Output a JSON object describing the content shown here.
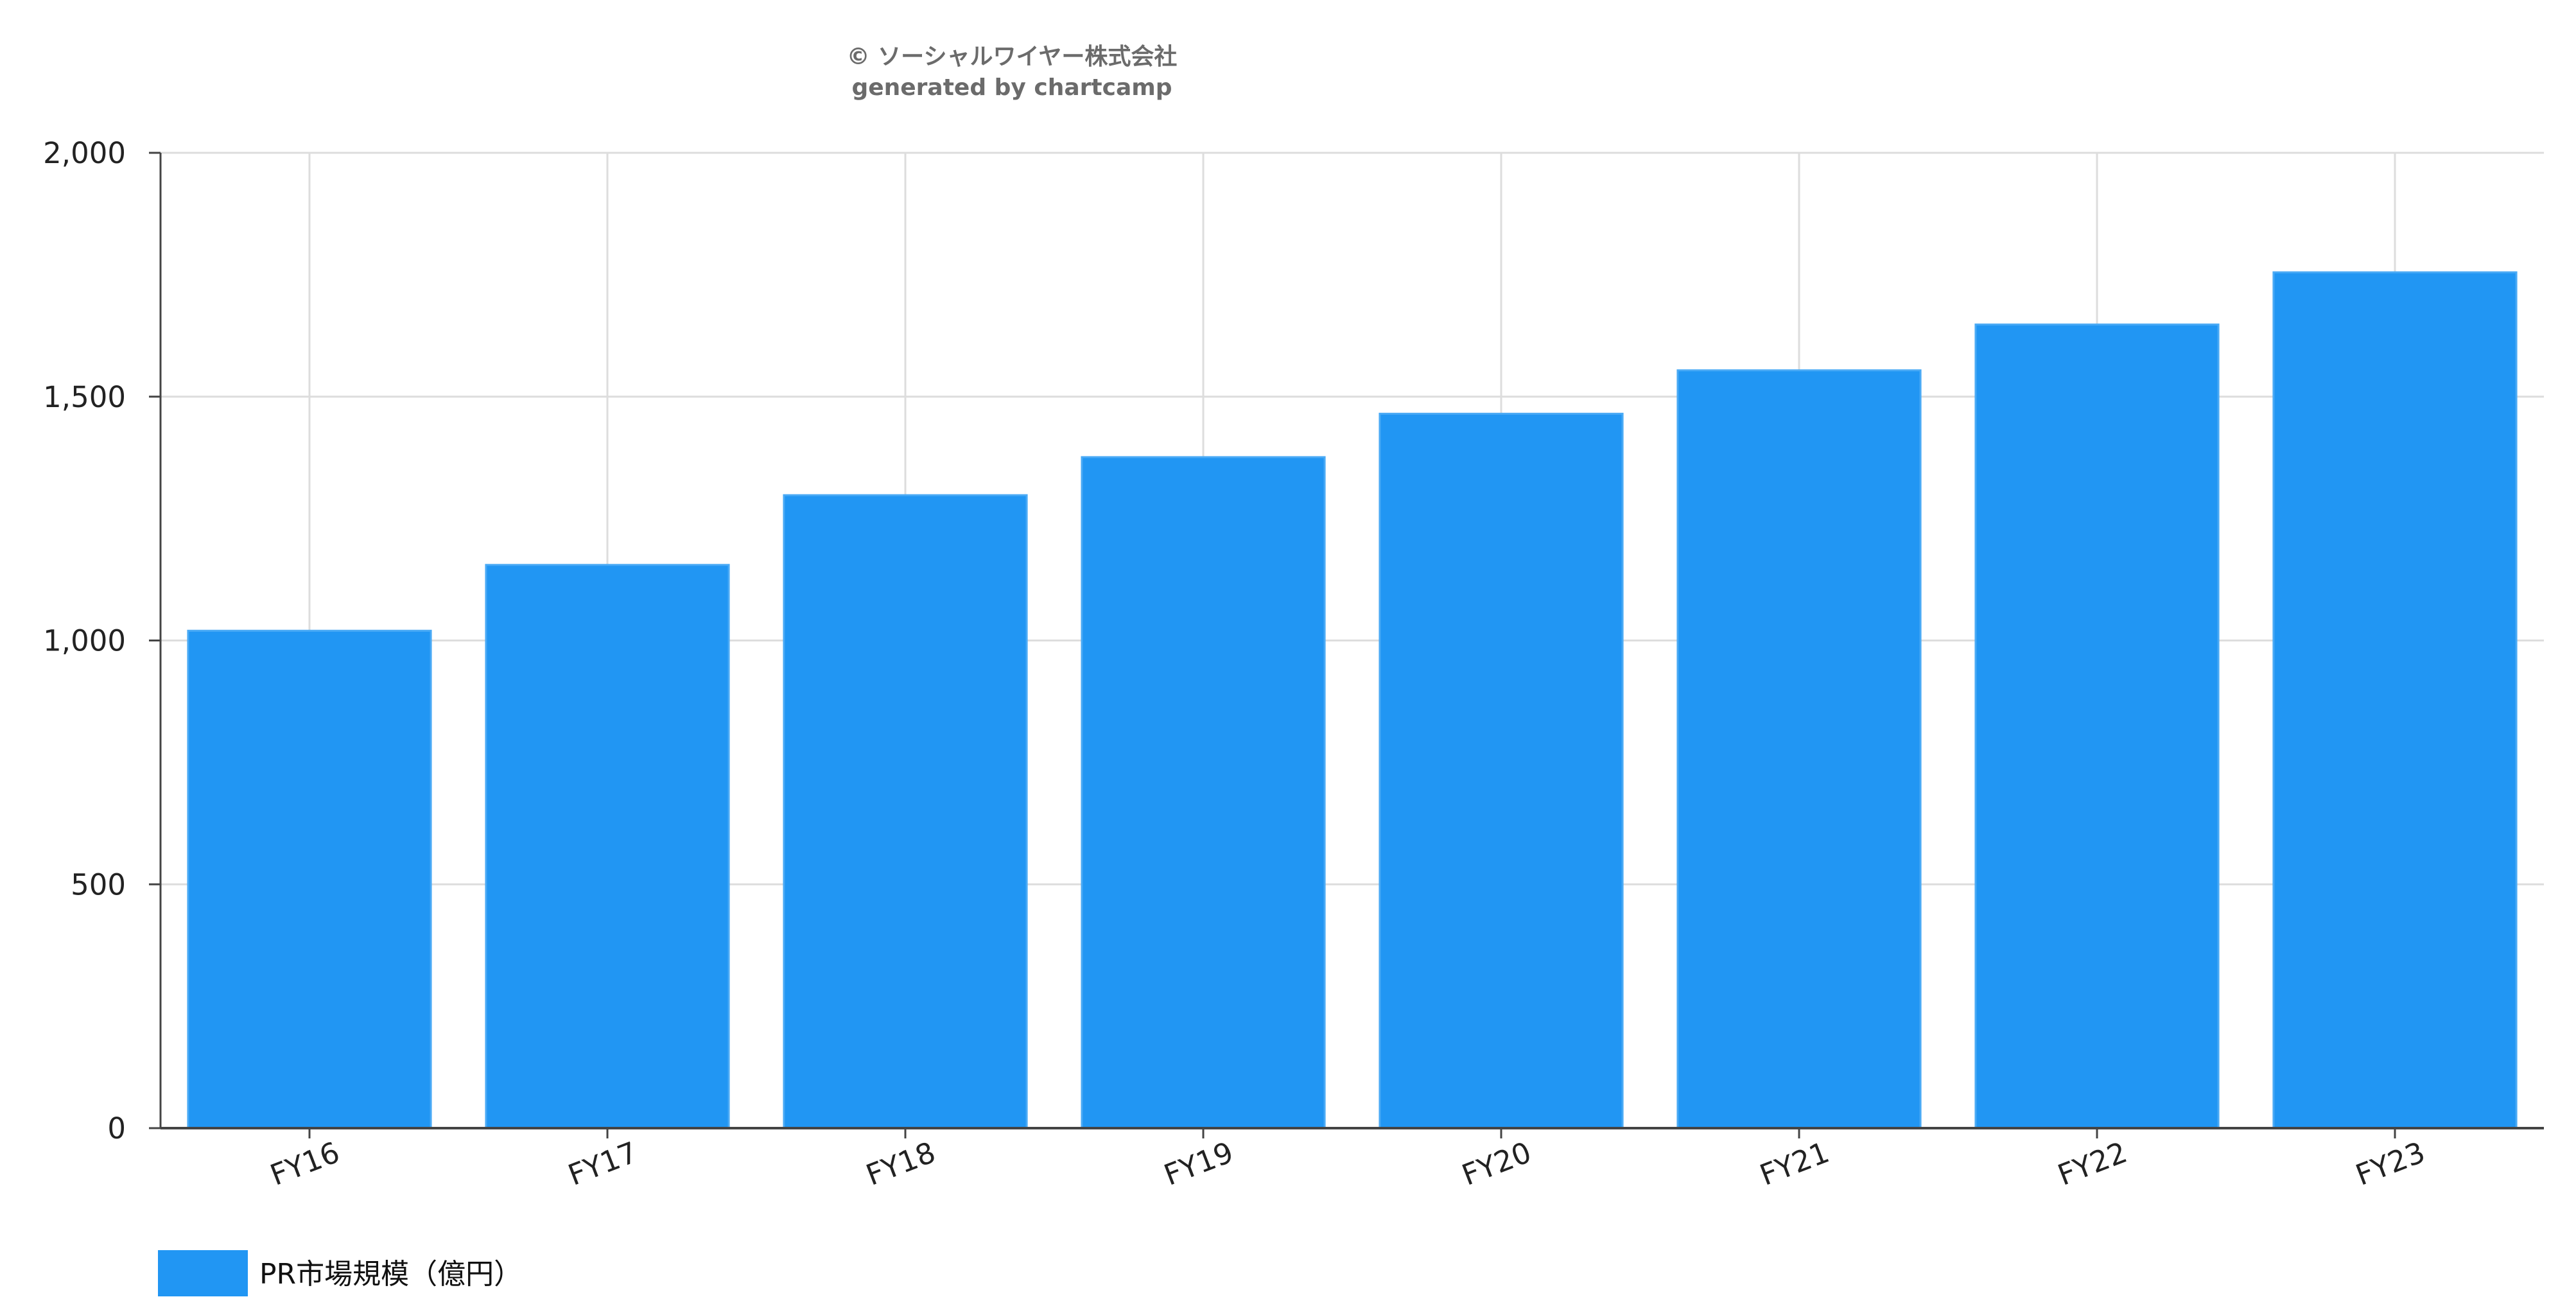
{
  "credit": {
    "line1": "© ソーシャルワイヤー株式会社",
    "line2": "generated by chartcamp"
  },
  "chart_data": {
    "type": "bar",
    "categories": [
      "FY16",
      "FY17",
      "FY18",
      "FY19",
      "FY20",
      "FY21",
      "FY22",
      "FY23"
    ],
    "series": [
      {
        "name": "PR市場規模（億円）",
        "values": [
          1020,
          1155,
          1298,
          1376,
          1465,
          1554,
          1648,
          1755
        ],
        "color": "#2196f3"
      }
    ],
    "ylim": [
      0,
      2000
    ],
    "yticks": [
      "0",
      "500",
      "1,000",
      "1,500",
      "2,000"
    ],
    "ytick_values": [
      0,
      500,
      1000,
      1500,
      2000
    ],
    "grid": true,
    "legend": "bottom-left",
    "colors": {
      "grid": "#dddddd",
      "axis": "#444444",
      "bar_edge": "#4aaaf5"
    }
  }
}
